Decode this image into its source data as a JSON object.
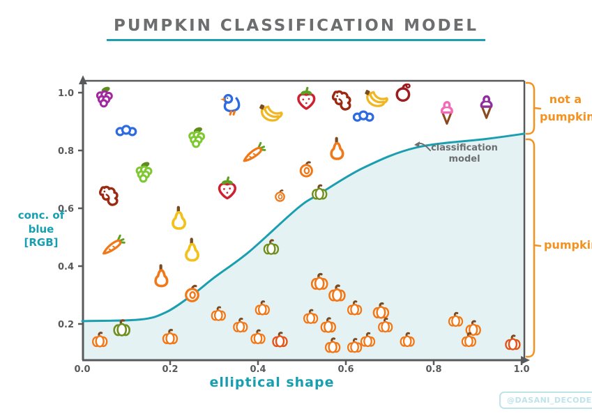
{
  "title": {
    "text": "PUMPKIN CLASSIFICATION MODEL"
  },
  "watermark": {
    "text": "@DASANI_DECODED"
  },
  "annotation": {
    "line1": "classification",
    "line2": "model"
  },
  "region_labels": {
    "top_line1": "not a",
    "top_line2": "pumpkin",
    "bottom": "pumpkin"
  },
  "axes": {
    "x_label": "elliptical shape",
    "y_label_line1": "conc. of",
    "y_label_line2": "blue",
    "y_label_line3": "[RGB]"
  },
  "colors": {
    "teal": "#1b9fb0",
    "area_fill": "#e4f2f3",
    "axis_gray": "#58595b",
    "text_gray": "#6d6e70",
    "orange_accent": "#f5921f",
    "watermark_teal": "#bfe3ea",
    "stem": "#7a4a21",
    "leaf": "#5e8c1e",
    "carrot_top": "#5da021",
    "cone": "#8a4a1e",
    "items": {
      "pumpkin-orange": "#f07818",
      "pumpkin-green": "#6f8f1f",
      "pumpkin-red": "#e2541b",
      "grapes-purple": "#a029a0",
      "grapes-green": "#7ec832",
      "caterpillar": "#2e6ae0",
      "duck": "#2e6ae0",
      "strawberry": "#cf2030",
      "banana": "#f0b723",
      "apple": "#9c1c20",
      "icecream-pink": "#f468b8",
      "icecream-purple": "#8f2f9e",
      "pear-orange": "#f07818",
      "gourd-yellow": "#f3c11c",
      "carrot": "#f07818",
      "tomato": "#f07818",
      "dog": "#9c2a12"
    }
  },
  "chart_data": {
    "type": "scatter",
    "title": "PUMPKIN CLASSIFICATION MODEL",
    "xlabel": "elliptical shape",
    "ylabel": "conc. of blue [RGB]",
    "xlim": [
      0.0,
      1.0
    ],
    "ylim": [
      0.075,
      1.05
    ],
    "xticks": [
      "0.0",
      "0.2",
      "0.4",
      "0.6",
      "0.8",
      "1.0"
    ],
    "xtick_values": [
      0.0,
      0.2,
      0.4,
      0.6,
      0.8,
      1.0
    ],
    "yticks": [
      "1.0",
      "0.8",
      "0.6",
      "0.4",
      "0.2"
    ],
    "ytick_values": [
      1.0,
      0.8,
      0.6,
      0.4,
      0.2
    ],
    "grid": false,
    "regions": [
      {
        "label": "not a pumpkin",
        "side": "above curve"
      },
      {
        "label": "pumpkin",
        "side": "below curve"
      }
    ],
    "model_curve": {
      "name": "classification model",
      "x": [
        0.0,
        0.13,
        0.19,
        0.25,
        0.3,
        0.38,
        0.49,
        0.54,
        0.64,
        0.76,
        0.92,
        1.0
      ],
      "y": [
        0.21,
        0.215,
        0.24,
        0.3,
        0.36,
        0.45,
        0.6,
        0.65,
        0.74,
        0.81,
        0.84,
        0.858
      ]
    },
    "points": [
      {
        "type": "grapes-purple",
        "x": 0.05,
        "y": 0.98,
        "s": 1.4
      },
      {
        "type": "caterpillar",
        "x": 0.1,
        "y": 0.87,
        "s": 1.25
      },
      {
        "type": "duck",
        "x": 0.34,
        "y": 0.96,
        "s": 1.4
      },
      {
        "type": "grapes-green",
        "x": 0.26,
        "y": 0.84,
        "s": 1.4
      },
      {
        "type": "grapes-green",
        "x": 0.14,
        "y": 0.72,
        "s": 1.4
      },
      {
        "type": "dog",
        "x": 0.06,
        "y": 0.64,
        "s": 1.5
      },
      {
        "type": "strawberry",
        "x": 0.33,
        "y": 0.67,
        "s": 1.5
      },
      {
        "type": "gourd-yellow",
        "x": 0.22,
        "y": 0.56,
        "s": 1.55
      },
      {
        "type": "carrot",
        "x": 0.07,
        "y": 0.47,
        "s": 1.35
      },
      {
        "type": "gourd-yellow",
        "x": 0.25,
        "y": 0.45,
        "s": 1.55
      },
      {
        "type": "pear-orange",
        "x": 0.18,
        "y": 0.36,
        "s": 1.5
      },
      {
        "type": "banana",
        "x": 0.43,
        "y": 0.92,
        "s": 1.45
      },
      {
        "type": "strawberry",
        "x": 0.51,
        "y": 0.98,
        "s": 1.5
      },
      {
        "type": "dog",
        "x": 0.59,
        "y": 0.97,
        "s": 1.5
      },
      {
        "type": "banana",
        "x": 0.67,
        "y": 0.97,
        "s": 1.45
      },
      {
        "type": "apple",
        "x": 0.73,
        "y": 0.99,
        "s": 1.45
      },
      {
        "type": "caterpillar",
        "x": 0.64,
        "y": 0.92,
        "s": 1.25
      },
      {
        "type": "carrot",
        "x": 0.39,
        "y": 0.79,
        "s": 1.35
      },
      {
        "type": "pear-orange",
        "x": 0.58,
        "y": 0.8,
        "s": 1.5
      },
      {
        "type": "tomato",
        "x": 0.51,
        "y": 0.73,
        "s": 1.25
      },
      {
        "type": "tomato",
        "x": 0.45,
        "y": 0.64,
        "s": 0.95
      },
      {
        "type": "icecream-pink",
        "x": 0.83,
        "y": 0.93,
        "s": 1.4
      },
      {
        "type": "icecream-purple",
        "x": 0.92,
        "y": 0.95,
        "s": 1.4
      },
      {
        "type": "pumpkin-green",
        "x": 0.54,
        "y": 0.65,
        "s": 1.0
      },
      {
        "type": "tomato",
        "x": 0.25,
        "y": 0.3,
        "s": 1.35
      },
      {
        "type": "pumpkin-green",
        "x": 0.43,
        "y": 0.46,
        "s": 1.0
      },
      {
        "type": "pumpkin-green",
        "x": 0.09,
        "y": 0.18,
        "s": 1.1
      },
      {
        "type": "pumpkin-orange",
        "x": 0.04,
        "y": 0.14,
        "s": 1.0
      },
      {
        "type": "pumpkin-orange",
        "x": 0.2,
        "y": 0.15,
        "s": 1.0
      },
      {
        "type": "pumpkin-orange",
        "x": 0.31,
        "y": 0.23,
        "s": 0.95
      },
      {
        "type": "pumpkin-orange",
        "x": 0.36,
        "y": 0.19,
        "s": 0.95
      },
      {
        "type": "pumpkin-orange",
        "x": 0.41,
        "y": 0.25,
        "s": 0.95
      },
      {
        "type": "pumpkin-orange",
        "x": 0.4,
        "y": 0.15,
        "s": 0.95
      },
      {
        "type": "pumpkin-red",
        "x": 0.45,
        "y": 0.14,
        "s": 1.0
      },
      {
        "type": "pumpkin-orange",
        "x": 0.54,
        "y": 0.34,
        "s": 1.1
      },
      {
        "type": "pumpkin-orange",
        "x": 0.58,
        "y": 0.3,
        "s": 1.1
      },
      {
        "type": "pumpkin-orange",
        "x": 0.62,
        "y": 0.25,
        "s": 0.95
      },
      {
        "type": "pumpkin-orange",
        "x": 0.68,
        "y": 0.24,
        "s": 1.05
      },
      {
        "type": "pumpkin-orange",
        "x": 0.52,
        "y": 0.22,
        "s": 0.95
      },
      {
        "type": "pumpkin-orange",
        "x": 0.56,
        "y": 0.19,
        "s": 1.0
      },
      {
        "type": "pumpkin-orange",
        "x": 0.69,
        "y": 0.19,
        "s": 0.95
      },
      {
        "type": "pumpkin-orange",
        "x": 0.57,
        "y": 0.12,
        "s": 1.0
      },
      {
        "type": "pumpkin-orange",
        "x": 0.62,
        "y": 0.12,
        "s": 0.95
      },
      {
        "type": "pumpkin-orange",
        "x": 0.65,
        "y": 0.14,
        "s": 0.95
      },
      {
        "type": "pumpkin-orange",
        "x": 0.74,
        "y": 0.14,
        "s": 0.95
      },
      {
        "type": "pumpkin-orange",
        "x": 0.85,
        "y": 0.21,
        "s": 0.95
      },
      {
        "type": "pumpkin-orange",
        "x": 0.89,
        "y": 0.18,
        "s": 1.0
      },
      {
        "type": "pumpkin-orange",
        "x": 0.88,
        "y": 0.14,
        "s": 0.95
      },
      {
        "type": "pumpkin-red",
        "x": 0.98,
        "y": 0.13,
        "s": 1.0
      }
    ]
  }
}
